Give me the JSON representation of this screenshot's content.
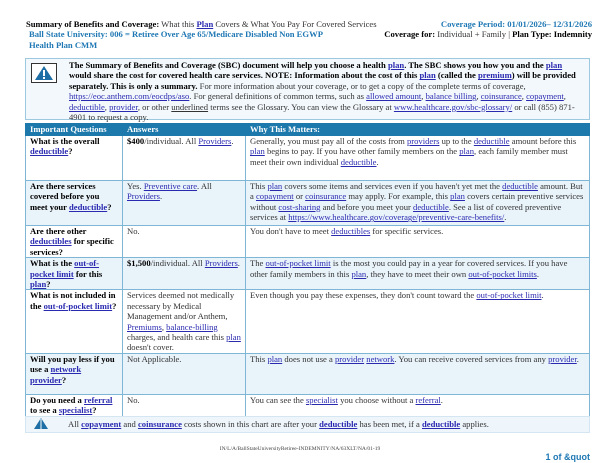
{
  "header": {
    "title": [
      {
        "t": "Summary of Benefits and Coverage:",
        "b": 1
      },
      {
        "t": " What this "
      },
      {
        "t": "Plan",
        "l": 1,
        "b": 1
      },
      {
        "t": " Covers & What You Pay For Covered Services"
      }
    ],
    "coverage_period": "Coverage Period: 01/01/2026– 12/31/2026",
    "plan_name_line1": "Ball State University: 006 = Retiree Over Age 65/Medicare Disabled Non EGWP",
    "plan_name_line2": "Health Plan CMM",
    "coverage_for": [
      {
        "t": "Coverage for:",
        "b": 1
      },
      {
        "t": " Individual + Family | "
      },
      {
        "t": "Plan Type: Indemnity",
        "b": 1
      }
    ]
  },
  "intro": {
    "icon": "warning-triangle-icon",
    "text": [
      {
        "t": "The Summary of Benefits and Coverage (SBC) document will help you choose a health ",
        "b": 1
      },
      {
        "t": "plan",
        "l": 1,
        "b": 1
      },
      {
        "t": ". The SBC shows you how you and the ",
        "b": 1
      },
      {
        "t": "plan",
        "l": 1,
        "b": 1
      },
      {
        "t": " would share the cost for covered health care services. NOTE: Information about the cost of this ",
        "b": 1
      },
      {
        "t": "plan",
        "l": 1,
        "b": 1
      },
      {
        "t": " (called the ",
        "b": 1
      },
      {
        "t": "premium",
        "l": 1,
        "b": 1
      },
      {
        "t": ") will be provided separately. This is only a summary.",
        "b": 1
      },
      {
        "t": " For more information about your coverage, or to get a copy of the complete terms of coverage, "
      },
      {
        "t": "https://eoc.anthem.com/eocdps/aso",
        "l": 1
      },
      {
        "t": ".  For general definitions of common terms, such as "
      },
      {
        "t": "allowed amount",
        "l": 1
      },
      {
        "t": ", "
      },
      {
        "t": "balance billing",
        "l": 1
      },
      {
        "t": ", "
      },
      {
        "t": "coinsurance",
        "l": 1
      },
      {
        "t": ", "
      },
      {
        "t": "copayment",
        "l": 1
      },
      {
        "t": ", "
      },
      {
        "t": "deductible",
        "l": 1
      },
      {
        "t": ", "
      },
      {
        "t": "provider",
        "l": 1
      },
      {
        "t": ", or other "
      },
      {
        "t": "underlined",
        "u": 1
      },
      {
        "t": " terms see the Glossary.  You can view the Glossary at "
      },
      {
        "t": "www.healthcare.gov/sbc-glossary/",
        "l": 1
      },
      {
        "t": " or call (855) 871-4901 to request a copy."
      }
    ]
  },
  "table": {
    "headers": [
      "Important Questions",
      "Answers",
      "Why This Matters:"
    ],
    "rows": [
      {
        "q": [
          {
            "t": "What is the overall "
          },
          {
            "t": "deductible",
            "l": 1
          },
          {
            "t": "?"
          }
        ],
        "a": [
          {
            "t": "$400",
            "b": 1
          },
          {
            "t": "/individual. All "
          },
          {
            "t": "Providers",
            "l": 1
          },
          {
            "t": "."
          }
        ],
        "w": [
          {
            "t": "Generally, you must pay all of the costs from "
          },
          {
            "t": "providers",
            "l": 1
          },
          {
            "t": " up to the "
          },
          {
            "t": "deductible",
            "l": 1
          },
          {
            "t": " amount before this "
          },
          {
            "t": "plan",
            "l": 1
          },
          {
            "t": " begins to pay. If you have other family members on the "
          },
          {
            "t": "plan",
            "l": 1
          },
          {
            "t": ", each family member must meet their own individual "
          },
          {
            "t": "deductible",
            "l": 1
          },
          {
            "t": "."
          }
        ]
      },
      {
        "q": [
          {
            "t": "Are there services covered before you meet your "
          },
          {
            "t": "deductible",
            "l": 1
          },
          {
            "t": "?"
          }
        ],
        "a": [
          {
            "t": "Yes. "
          },
          {
            "t": "Preventive care",
            "l": 1
          },
          {
            "t": ". All "
          },
          {
            "t": "Providers",
            "l": 1
          },
          {
            "t": "."
          }
        ],
        "w": [
          {
            "t": "This "
          },
          {
            "t": "plan",
            "l": 1
          },
          {
            "t": " covers some items and services even if you haven't yet met the "
          },
          {
            "t": "deductible",
            "l": 1
          },
          {
            "t": " amount. But a "
          },
          {
            "t": "copayment",
            "l": 1
          },
          {
            "t": " or "
          },
          {
            "t": "coinsurance",
            "l": 1
          },
          {
            "t": " may apply. For example, this "
          },
          {
            "t": "plan",
            "l": 1
          },
          {
            "t": " covers certain preventive services without "
          },
          {
            "t": "cost-sharing",
            "l": 1
          },
          {
            "t": " and before you meet your "
          },
          {
            "t": "deductible",
            "l": 1
          },
          {
            "t": ". See a list of covered preventive services at "
          },
          {
            "t": "https://www.healthcare.gov/coverage/preventive-care-benefits/",
            "l": 1
          },
          {
            "t": "."
          }
        ]
      },
      {
        "q": [
          {
            "t": "Are there other "
          },
          {
            "t": "deductibles",
            "l": 1
          },
          {
            "t": " for specific services?"
          }
        ],
        "a": [
          {
            "t": "No."
          }
        ],
        "w": [
          {
            "t": "You don't have to meet "
          },
          {
            "t": "deductibles",
            "l": 1
          },
          {
            "t": " for specific services."
          }
        ]
      },
      {
        "q": [
          {
            "t": "What is the "
          },
          {
            "t": "out-of-pocket limit",
            "l": 1
          },
          {
            "t": " for this "
          },
          {
            "t": "plan",
            "l": 1
          },
          {
            "t": "?"
          }
        ],
        "a": [
          {
            "t": "$1,500",
            "b": 1
          },
          {
            "t": "/individual. All "
          },
          {
            "t": "Providers",
            "l": 1
          },
          {
            "t": "."
          }
        ],
        "w": [
          {
            "t": "The "
          },
          {
            "t": "out-of-pocket limit",
            "l": 1
          },
          {
            "t": " is the most you could pay in a year for covered services. If you have other family members in this "
          },
          {
            "t": "plan",
            "l": 1
          },
          {
            "t": ", they have to meet their own "
          },
          {
            "t": "out-of-pocket limits",
            "l": 1
          },
          {
            "t": "."
          }
        ]
      },
      {
        "q": [
          {
            "t": "What is not included in the "
          },
          {
            "t": "out-of-pocket limit",
            "l": 1
          },
          {
            "t": "?"
          }
        ],
        "a": [
          {
            "t": "Services deemed not medically necessary by Medical Management and/or Anthem, "
          },
          {
            "t": "Premiums",
            "l": 1
          },
          {
            "t": ", "
          },
          {
            "t": "balance-billing",
            "l": 1
          },
          {
            "t": " charges, and health care this "
          },
          {
            "t": "plan",
            "l": 1
          },
          {
            "t": " doesn't cover."
          }
        ],
        "w": [
          {
            "t": "Even though you pay these expenses, they don't count toward the "
          },
          {
            "t": "out-of-pocket limit",
            "l": 1
          },
          {
            "t": "."
          }
        ]
      },
      {
        "q": [
          {
            "t": "Will you pay less if you use a "
          },
          {
            "t": "network provider",
            "l": 1
          },
          {
            "t": "?"
          }
        ],
        "a": [
          {
            "t": "Not Applicable."
          }
        ],
        "w": [
          {
            "t": "This "
          },
          {
            "t": "plan",
            "l": 1
          },
          {
            "t": " does not use a "
          },
          {
            "t": "provider",
            "l": 1
          },
          {
            "t": " "
          },
          {
            "t": "network",
            "l": 1
          },
          {
            "t": ". You can receive covered services from any "
          },
          {
            "t": "provider",
            "l": 1
          },
          {
            "t": "."
          }
        ]
      },
      {
        "q": [
          {
            "t": "Do you need a "
          },
          {
            "t": "referral",
            "l": 1
          },
          {
            "t": " to see a "
          },
          {
            "t": "specialist",
            "l": 1
          },
          {
            "t": "?"
          }
        ],
        "a": [
          {
            "t": "No."
          }
        ],
        "w": [
          {
            "t": "You can see the "
          },
          {
            "t": "specialist",
            "l": 1
          },
          {
            "t": " you choose without a "
          },
          {
            "t": "referral",
            "l": 1
          },
          {
            "t": "."
          }
        ]
      }
    ]
  },
  "footer_note": {
    "icon": "warning-triangle-icon",
    "text": [
      {
        "t": "All "
      },
      {
        "t": "copayment",
        "l": 1,
        "b": 1
      },
      {
        "t": " and "
      },
      {
        "t": "coinsurance",
        "l": 1,
        "b": 1
      },
      {
        "t": " costs shown in this chart are after your "
      },
      {
        "t": "deductible",
        "l": 1,
        "b": 1
      },
      {
        "t": " has been met, if a "
      },
      {
        "t": "deductible",
        "l": 1,
        "b": 1
      },
      {
        "t": " applies."
      }
    ]
  },
  "doc_code": "IN/L/A/BallStateUniversityRetiree-INDEMNITY/NA/63XLT/NA/01-19",
  "page_label": "1 of &quot",
  "colors": {
    "accent": "#1f78b4",
    "header_row": "#1d78ab",
    "link": "#2a2ab0",
    "row_alt": "#e9f3fa"
  }
}
